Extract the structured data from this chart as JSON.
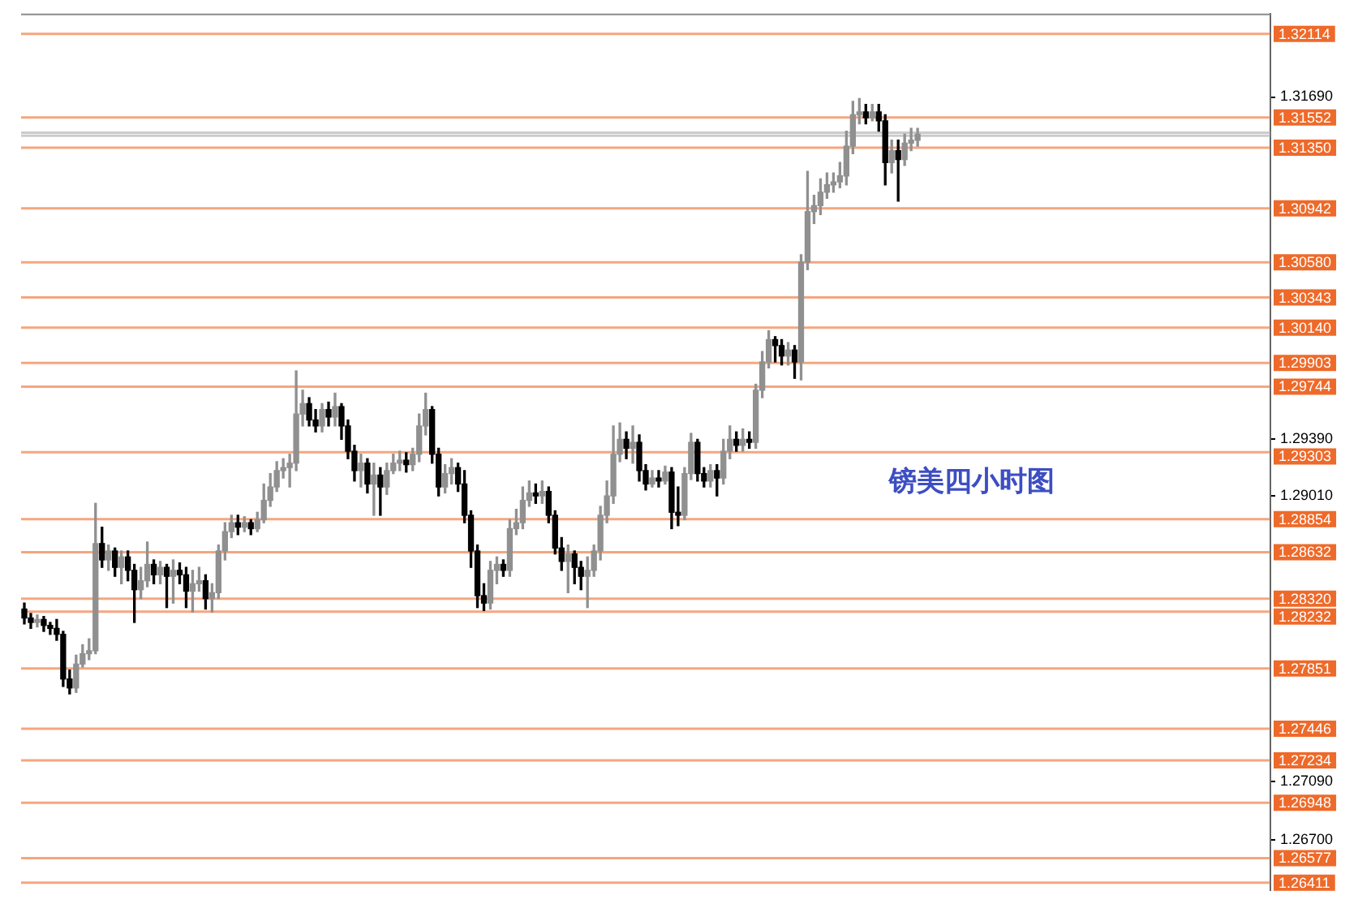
{
  "chart_data": {
    "type": "candlestick",
    "title": "镑美四小时图",
    "categories": [
      null,
      null,
      null,
      null,
      null,
      null,
      null,
      null,
      null,
      null,
      null,
      null,
      null,
      null,
      null,
      null,
      null,
      null,
      null,
      null,
      null,
      null,
      null,
      null,
      null,
      null,
      null,
      null,
      null,
      null,
      null,
      null,
      null,
      null,
      null,
      null,
      null,
      null,
      null,
      null,
      null,
      null,
      null,
      null,
      null,
      null,
      null,
      null,
      null,
      null,
      null,
      null,
      null,
      null,
      null,
      null,
      null,
      null,
      null,
      null,
      null,
      null,
      null,
      null,
      null,
      null,
      null,
      null,
      null,
      null,
      null,
      null,
      null,
      null,
      null,
      null,
      null,
      null,
      null,
      null,
      null,
      null,
      null,
      null,
      null,
      null,
      null,
      null,
      null,
      null,
      null,
      null,
      null,
      null,
      null,
      null,
      null,
      null,
      null,
      null,
      null,
      null,
      null,
      null,
      null,
      null,
      null,
      null,
      null,
      null,
      null,
      null,
      null,
      null,
      null,
      null,
      null,
      null,
      null,
      null,
      null,
      null,
      null,
      null,
      null,
      null,
      null,
      null,
      null,
      null,
      null,
      null,
      null,
      null,
      null,
      null,
      null,
      null,
      null,
      null,
      null,
      null,
      null,
      null,
      null,
      null,
      null,
      null,
      null,
      null,
      null,
      null,
      null,
      null,
      null,
      null,
      null,
      null,
      null,
      null,
      null,
      null,
      null,
      null,
      null,
      null,
      null,
      null,
      null,
      null,
      null,
      null,
      null,
      null,
      null,
      null,
      null,
      null,
      null,
      null,
      null,
      null,
      null,
      null,
      null,
      null,
      null,
      null,
      null,
      null,
      null,
      null,
      null
    ],
    "ohlc": [
      [
        1.2825,
        1.2829,
        1.2815,
        1.2819
      ],
      [
        1.2819,
        1.2822,
        1.2812,
        1.2816
      ],
      [
        1.2816,
        1.2821,
        1.2813,
        1.2818
      ],
      [
        1.2818,
        1.282,
        1.281,
        1.2814
      ],
      [
        1.2814,
        1.2816,
        1.2808,
        1.2812
      ],
      [
        1.2812,
        1.2818,
        1.2804,
        1.2808
      ],
      [
        1.2808,
        1.281,
        1.2773,
        1.2778
      ],
      [
        1.2778,
        1.2784,
        1.2768,
        1.2772
      ],
      [
        1.2772,
        1.2794,
        1.2769,
        1.2788
      ],
      [
        1.2788,
        1.2801,
        1.2786,
        1.2795
      ],
      [
        1.2795,
        1.2805,
        1.2791,
        1.2797
      ],
      [
        1.2797,
        1.2896,
        1.2795,
        1.2869
      ],
      [
        1.2869,
        1.288,
        1.2853,
        1.2858
      ],
      [
        1.2858,
        1.2868,
        1.2851,
        1.2864
      ],
      [
        1.2864,
        1.2866,
        1.2847,
        1.2853
      ],
      [
        1.2853,
        1.2864,
        1.2842,
        1.286
      ],
      [
        1.286,
        1.2864,
        1.2844,
        1.2851
      ],
      [
        1.2851,
        1.2855,
        1.2816,
        1.2838
      ],
      [
        1.2838,
        1.2853,
        1.2832,
        1.2844
      ],
      [
        1.2844,
        1.287,
        1.284,
        1.2855
      ],
      [
        1.2855,
        1.2858,
        1.2842,
        1.2848
      ],
      [
        1.2848,
        1.2857,
        1.2842,
        1.2853
      ],
      [
        1.2853,
        1.2855,
        1.2826,
        1.2847
      ],
      [
        1.2847,
        1.2858,
        1.2829,
        1.2851
      ],
      [
        1.2851,
        1.2856,
        1.2842,
        1.2848
      ],
      [
        1.2848,
        1.2853,
        1.2826,
        1.2837
      ],
      [
        1.2837,
        1.2851,
        1.2823,
        1.2842
      ],
      [
        1.2842,
        1.2853,
        1.2837,
        1.2844
      ],
      [
        1.2844,
        1.2848,
        1.2825,
        1.2832
      ],
      [
        1.2832,
        1.2842,
        1.2823,
        1.2836
      ],
      [
        1.2836,
        1.2868,
        1.2832,
        1.2864
      ],
      [
        1.2864,
        1.2883,
        1.2858,
        1.2877
      ],
      [
        1.2877,
        1.2888,
        1.2873,
        1.2883
      ],
      [
        1.2883,
        1.2888,
        1.2875,
        1.288
      ],
      [
        1.288,
        1.2887,
        1.2877,
        1.2883
      ],
      [
        1.2883,
        1.2885,
        1.2875,
        1.2879
      ],
      [
        1.2879,
        1.289,
        1.2877,
        1.2885
      ],
      [
        1.2885,
        1.2909,
        1.2883,
        1.2898
      ],
      [
        1.2898,
        1.2916,
        1.2894,
        1.2907
      ],
      [
        1.2907,
        1.2924,
        1.2904,
        1.2918
      ],
      [
        1.2918,
        1.2926,
        1.2913,
        1.292
      ],
      [
        1.292,
        1.2929,
        1.2907,
        1.2923
      ],
      [
        1.2923,
        1.2985,
        1.2918,
        1.2956
      ],
      [
        1.2956,
        1.2972,
        1.2948,
        1.2963
      ],
      [
        1.2963,
        1.2967,
        1.2948,
        1.2952
      ],
      [
        1.2952,
        1.2959,
        1.2944,
        1.2948
      ],
      [
        1.2948,
        1.2963,
        1.2944,
        1.2959
      ],
      [
        1.2959,
        1.2964,
        1.2948,
        1.2954
      ],
      [
        1.2954,
        1.297,
        1.2948,
        1.2961
      ],
      [
        1.2961,
        1.2963,
        1.2939,
        1.2948
      ],
      [
        1.2948,
        1.2952,
        1.2926,
        1.2931
      ],
      [
        1.2931,
        1.2935,
        1.2911,
        1.2918
      ],
      [
        1.2918,
        1.2929,
        1.2907,
        1.2923
      ],
      [
        1.2923,
        1.2926,
        1.2903,
        1.2909
      ],
      [
        1.2909,
        1.2923,
        1.2888,
        1.2915
      ],
      [
        1.2915,
        1.292,
        1.2888,
        1.2907
      ],
      [
        1.2907,
        1.2923,
        1.2902,
        1.2918
      ],
      [
        1.2918,
        1.2929,
        1.2916,
        1.2923
      ],
      [
        1.2923,
        1.2931,
        1.2918,
        1.2925
      ],
      [
        1.2925,
        1.293,
        1.2917,
        1.2922
      ],
      [
        1.2922,
        1.2933,
        1.2918,
        1.2929
      ],
      [
        1.2929,
        1.2956,
        1.2924,
        1.2948
      ],
      [
        1.2948,
        1.297,
        1.2942,
        1.2959
      ],
      [
        1.2959,
        1.2961,
        1.2923,
        1.2929
      ],
      [
        1.2929,
        1.2933,
        1.2901,
        1.2907
      ],
      [
        1.2907,
        1.2922,
        1.2903,
        1.2916
      ],
      [
        1.2916,
        1.2926,
        1.2909,
        1.292
      ],
      [
        1.292,
        1.2923,
        1.2904,
        1.2909
      ],
      [
        1.2909,
        1.2918,
        1.2883,
        1.2888
      ],
      [
        1.2888,
        1.2891,
        1.2853,
        1.2864
      ],
      [
        1.2864,
        1.2868,
        1.2826,
        1.2834
      ],
      [
        1.2834,
        1.2842,
        1.2824,
        1.2829
      ],
      [
        1.2829,
        1.2857,
        1.2825,
        1.2851
      ],
      [
        1.2851,
        1.286,
        1.2842,
        1.2855
      ],
      [
        1.2855,
        1.2858,
        1.2847,
        1.2851
      ],
      [
        1.2851,
        1.2885,
        1.2847,
        1.2879
      ],
      [
        1.2879,
        1.2892,
        1.2875,
        1.2883
      ],
      [
        1.2883,
        1.2907,
        1.2879,
        1.2898
      ],
      [
        1.2898,
        1.2911,
        1.2894,
        1.2903
      ],
      [
        1.2903,
        1.2909,
        1.2896,
        1.2901
      ],
      [
        1.2901,
        1.2911,
        1.2896,
        1.2904
      ],
      [
        1.2904,
        1.2907,
        1.2883,
        1.2888
      ],
      [
        1.2888,
        1.2891,
        1.2862,
        1.2866
      ],
      [
        1.2866,
        1.2873,
        1.2851,
        1.2857
      ],
      [
        1.2857,
        1.2868,
        1.2836,
        1.2862
      ],
      [
        1.2862,
        1.2864,
        1.2842,
        1.2853
      ],
      [
        1.2853,
        1.2857,
        1.2838,
        1.2847
      ],
      [
        1.2847,
        1.286,
        1.2826,
        1.2851
      ],
      [
        1.2851,
        1.2868,
        1.2847,
        1.2864
      ],
      [
        1.2864,
        1.2894,
        1.2858,
        1.2888
      ],
      [
        1.2888,
        1.2911,
        1.2883,
        1.2901
      ],
      [
        1.2901,
        1.2948,
        1.2896,
        1.2929
      ],
      [
        1.2929,
        1.295,
        1.2924,
        1.2939
      ],
      [
        1.2939,
        1.2944,
        1.2926,
        1.2933
      ],
      [
        1.2933,
        1.2948,
        1.2923,
        1.2937
      ],
      [
        1.2937,
        1.2942,
        1.2911,
        1.2918
      ],
      [
        1.2918,
        1.2922,
        1.2905,
        1.2909
      ],
      [
        1.2909,
        1.2918,
        1.2907,
        1.2913
      ],
      [
        1.2913,
        1.2918,
        1.2907,
        1.2911
      ],
      [
        1.2911,
        1.2921,
        1.2909,
        1.2917
      ],
      [
        1.2917,
        1.292,
        1.2879,
        1.289
      ],
      [
        1.289,
        1.2907,
        1.2881,
        1.2888
      ],
      [
        1.2888,
        1.292,
        1.2885,
        1.2916
      ],
      [
        1.2916,
        1.2943,
        1.2912,
        1.2937
      ],
      [
        1.2937,
        1.2939,
        1.2911,
        1.2916
      ],
      [
        1.2916,
        1.292,
        1.2907,
        1.2911
      ],
      [
        1.2911,
        1.2922,
        1.2907,
        1.2918
      ],
      [
        1.2918,
        1.2922,
        1.2901,
        1.2913
      ],
      [
        1.2913,
        1.2939,
        1.2909,
        1.2931
      ],
      [
        1.2931,
        1.2948,
        1.2926,
        1.2939
      ],
      [
        1.2939,
        1.2944,
        1.2931,
        1.2935
      ],
      [
        1.2935,
        1.2946,
        1.2931,
        1.2939
      ],
      [
        1.2939,
        1.2944,
        1.2933,
        1.2937
      ],
      [
        1.2937,
        1.2976,
        1.2933,
        1.2972
      ],
      [
        1.2972,
        1.2998,
        1.2967,
        1.2991
      ],
      [
        1.2991,
        1.3012,
        1.2987,
        1.3006
      ],
      [
        1.3006,
        1.3008,
        1.2991,
        1.3002
      ],
      [
        1.3002,
        1.3006,
        1.2989,
        1.2995
      ],
      [
        1.2995,
        1.3004,
        1.2989,
        1.2999
      ],
      [
        1.2999,
        1.3002,
        1.298,
        1.2991
      ],
      [
        1.2991,
        1.3063,
        1.2979,
        1.3058
      ],
      [
        1.3058,
        1.3119,
        1.3053,
        1.3092
      ],
      [
        1.3092,
        1.3103,
        1.3084,
        1.3096
      ],
      [
        1.3096,
        1.3114,
        1.309,
        1.3105
      ],
      [
        1.3105,
        1.3118,
        1.3101,
        1.311
      ],
      [
        1.311,
        1.3118,
        1.3105,
        1.3112
      ],
      [
        1.3112,
        1.3125,
        1.3108,
        1.3116
      ],
      [
        1.3116,
        1.3146,
        1.311,
        1.3136
      ],
      [
        1.3136,
        1.3166,
        1.3131,
        1.3157
      ],
      [
        1.3157,
        1.3168,
        1.3151,
        1.3159
      ],
      [
        1.3159,
        1.3164,
        1.3151,
        1.3155
      ],
      [
        1.3155,
        1.3164,
        1.3153,
        1.3159
      ],
      [
        1.3159,
        1.3164,
        1.3146,
        1.3153
      ],
      [
        1.3153,
        1.3157,
        1.311,
        1.3125
      ],
      [
        1.3125,
        1.314,
        1.3118,
        1.3133
      ],
      [
        1.3133,
        1.314,
        1.3099,
        1.3127
      ],
      [
        1.3127,
        1.3144,
        1.3123,
        1.3138
      ],
      [
        1.3138,
        1.3148,
        1.3133,
        1.314
      ],
      [
        1.314,
        1.3148,
        1.3136,
        1.3144
      ],
      null,
      null,
      null,
      null,
      null,
      null,
      null,
      null,
      null,
      null,
      null,
      null,
      null,
      null,
      null,
      null,
      null,
      null,
      null,
      null,
      null,
      null,
      null,
      null,
      null,
      null,
      null,
      null,
      null,
      null,
      null,
      null,
      null,
      null,
      null,
      null,
      null,
      null,
      null,
      null,
      null,
      null,
      null,
      null,
      null,
      null,
      null,
      null,
      null,
      null,
      null,
      null,
      null,
      null
    ],
    "colors": [
      "#000000",
      "#000000",
      "#909090",
      "#000000",
      "#000000",
      "#000000",
      "#000000",
      "#000000",
      "#909090",
      "#909090",
      "#909090",
      "#909090",
      "#000000",
      "#909090",
      "#000000",
      "#909090",
      "#000000",
      "#000000",
      "#909090",
      "#909090",
      "#000000",
      "#909090",
      "#000000",
      "#909090",
      "#000000",
      "#000000",
      "#909090",
      "#909090",
      "#000000",
      "#909090",
      "#909090",
      "#909090",
      "#909090",
      "#000000",
      "#909090",
      "#000000",
      "#909090",
      "#909090",
      "#909090",
      "#909090",
      "#909090",
      "#909090",
      "#909090",
      "#909090",
      "#000000",
      "#000000",
      "#909090",
      "#000000",
      "#909090",
      "#000000",
      "#000000",
      "#000000",
      "#909090",
      "#000000",
      "#909090",
      "#000000",
      "#909090",
      "#909090",
      "#909090",
      "#000000",
      "#909090",
      "#909090",
      "#909090",
      "#000000",
      "#000000",
      "#909090",
      "#909090",
      "#000000",
      "#000000",
      "#000000",
      "#000000",
      "#000000",
      "#909090",
      "#909090",
      "#000000",
      "#909090",
      "#909090",
      "#909090",
      "#909090",
      "#000000",
      "#909090",
      "#000000",
      "#000000",
      "#000000",
      "#909090",
      "#000000",
      "#000000",
      "#909090",
      "#909090",
      "#909090",
      "#909090",
      "#909090",
      "#909090",
      "#000000",
      "#909090",
      "#000000",
      "#000000",
      "#909090",
      "#000000",
      "#909090",
      "#000000",
      "#000000",
      "#909090",
      "#909090",
      "#000000",
      "#000000",
      "#909090",
      "#000000",
      "#909090",
      "#909090",
      "#000000",
      "#909090",
      "#000000",
      "#909090",
      "#909090",
      "#909090",
      "#000000",
      "#000000",
      "#909090",
      "#000000",
      "#909090",
      "#909090",
      "#909090",
      "#909090",
      "#909090",
      "#909090",
      "#909090",
      "#909090",
      "#909090",
      "#909090",
      "#000000",
      "#909090",
      "#000000",
      "#000000",
      "#909090",
      "#000000",
      "#909090",
      "#909090",
      "#909090",
      null,
      null,
      null,
      null,
      null,
      null,
      null,
      null,
      null,
      null,
      null,
      null,
      null,
      null,
      null,
      null,
      null,
      null,
      null,
      null,
      null,
      null,
      null,
      null,
      null,
      null,
      null,
      null,
      null,
      null,
      null,
      null,
      null,
      null,
      null,
      null,
      null,
      null,
      null,
      null,
      null,
      null,
      null,
      null,
      null,
      null,
      null,
      null,
      null,
      null,
      null,
      null,
      null,
      null
    ],
    "ylim": [
      1.2636,
      1.3225
    ],
    "yticks": [
      {
        "value": 1.3169,
        "label": "1.31690"
      },
      {
        "value": 1.2939,
        "label": "1.29390"
      },
      {
        "value": 1.2901,
        "label": "1.29010"
      },
      {
        "value": 1.2709,
        "label": "1.27090"
      },
      {
        "value": 1.267,
        "label": "1.26700"
      }
    ],
    "ref_lines": [
      {
        "axis": "y",
        "value": 1.32114,
        "label": "1.32114",
        "color": "#ee6a2a"
      },
      {
        "axis": "y",
        "value": 1.31552,
        "label": "1.31552",
        "color": "#ee6a2a"
      },
      {
        "axis": "y",
        "value": 1.3145,
        "color": "#a8a8a8"
      },
      {
        "axis": "y",
        "value": 1.3143,
        "color": "#a8a8a8"
      },
      {
        "axis": "y",
        "value": 1.3135,
        "label": "1.31350",
        "color": "#ee6a2a"
      },
      {
        "axis": "y",
        "value": 1.30942,
        "label": "1.30942",
        "color": "#ee6a2a"
      },
      {
        "axis": "y",
        "value": 1.3058,
        "label": "1.30580",
        "color": "#ee6a2a"
      },
      {
        "axis": "y",
        "value": 1.30343,
        "label": "1.30343",
        "color": "#ee6a2a"
      },
      {
        "axis": "y",
        "value": 1.3014,
        "label": "1.30140",
        "color": "#ee6a2a"
      },
      {
        "axis": "y",
        "value": 1.29903,
        "label": "1.29903",
        "color": "#ee6a2a"
      },
      {
        "axis": "y",
        "value": 1.29744,
        "label": "1.29744",
        "color": "#ee6a2a"
      },
      {
        "axis": "y",
        "value": 1.29303,
        "label": "1.29303",
        "color": "#ee6a2a"
      },
      {
        "axis": "y",
        "value": 1.28854,
        "label": "1.28854",
        "color": "#ee6a2a"
      },
      {
        "axis": "y",
        "value": 1.28632,
        "label": "1.28632",
        "color": "#ee6a2a"
      },
      {
        "axis": "y",
        "value": 1.2832,
        "label": "1.28320",
        "color": "#ee6a2a"
      },
      {
        "axis": "y",
        "value": 1.28232,
        "label": "1.28232",
        "color": "#ee6a2a"
      },
      {
        "axis": "y",
        "value": 1.27851,
        "label": "1.27851",
        "color": "#ee6a2a"
      },
      {
        "axis": "y",
        "value": 1.27446,
        "label": "1.27446",
        "color": "#ee6a2a"
      },
      {
        "axis": "y",
        "value": 1.27234,
        "label": "1.27234",
        "color": "#ee6a2a"
      },
      {
        "axis": "y",
        "value": 1.26948,
        "label": "1.26948",
        "color": "#ee6a2a"
      },
      {
        "axis": "y",
        "value": 1.26577,
        "label": "1.26577",
        "color": "#ee6a2a"
      },
      {
        "axis": "y",
        "value": 1.26411,
        "label": "1.26411",
        "color": "#ee6a2a"
      }
    ],
    "grid": false,
    "legend": false,
    "tick_labels": "y"
  }
}
